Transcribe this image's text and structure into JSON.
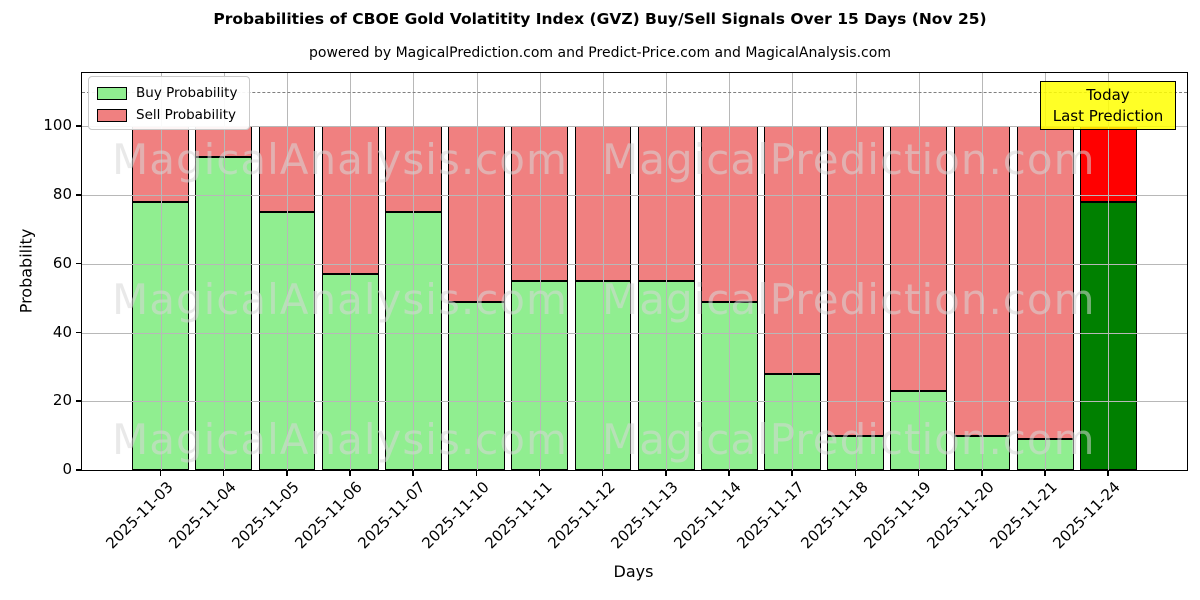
{
  "title": "Probabilities of CBOE Gold Volatitity Index (GVZ) Buy/Sell Signals Over 15 Days (Nov 25)",
  "subtitle": "powered by MagicalPrediction.com and Predict-Price.com and MagicalAnalysis.com",
  "axes": {
    "ylabel": "Probability",
    "xlabel": "Days",
    "yticks": [
      0,
      20,
      40,
      60,
      80,
      100
    ]
  },
  "legend": {
    "items": [
      {
        "label": "Buy Probability",
        "color": "#90ee90"
      },
      {
        "label": "Sell Probability",
        "color": "#f08080"
      }
    ]
  },
  "annotation": {
    "line1": "Today",
    "line2": "Last Prediction",
    "bg_color": "#ffff00"
  },
  "watermarks": [
    "MagicalAnalysis.com",
    "MagicalPrediction.com"
  ],
  "chart_data": {
    "type": "bar",
    "stacked": true,
    "categories": [
      "2025-11-03",
      "2025-11-04",
      "2025-11-05",
      "2025-11-06",
      "2025-11-07",
      "2025-11-10",
      "2025-11-11",
      "2025-11-12",
      "2025-11-13",
      "2025-11-14",
      "2025-11-17",
      "2025-11-18",
      "2025-11-19",
      "2025-11-20",
      "2025-11-21",
      "2025-11-24"
    ],
    "series": [
      {
        "name": "Buy Probability",
        "color": "#90ee90",
        "values": [
          78,
          91,
          75,
          57,
          75,
          49,
          55,
          55,
          55,
          49,
          28,
          10,
          23,
          10,
          9,
          78
        ]
      },
      {
        "name": "Sell Probability",
        "color": "#f08080",
        "values": [
          22,
          9,
          25,
          43,
          25,
          51,
          45,
          45,
          45,
          51,
          72,
          90,
          77,
          90,
          91,
          22
        ]
      }
    ],
    "today_bar": {
      "index": 15,
      "buy_color": "#008000",
      "sell_color": "#ff0000"
    },
    "title": "Probabilities of CBOE Gold Volatitity Index (GVZ) Buy/Sell Signals Over 15 Days (Nov 25)",
    "xlabel": "Days",
    "ylabel": "Probability",
    "ylim": [
      0,
      115.5
    ],
    "dashed_line_y": 110,
    "bar_total": 100,
    "grid": true,
    "legend_position": "upper left"
  }
}
